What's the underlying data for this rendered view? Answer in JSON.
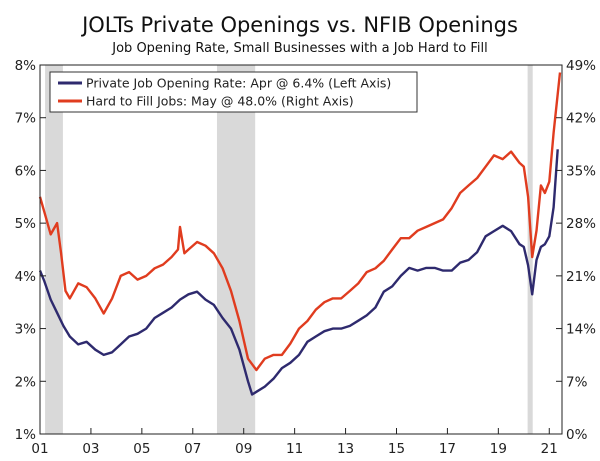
{
  "chart_data": {
    "type": "line",
    "title": "JOLTs Private Openings vs. NFIB Openings",
    "subtitle": "Job Opening Rate, Small Businesses with a Job Hard to Fill",
    "x_range": [
      2001,
      2021.5
    ],
    "x_tick_values": [
      2001,
      2003,
      2005,
      2007,
      2009,
      2011,
      2013,
      2015,
      2017,
      2019,
      2021
    ],
    "x_tick_labels": [
      "01",
      "03",
      "05",
      "07",
      "09",
      "11",
      "13",
      "15",
      "17",
      "19",
      "21"
    ],
    "left_axis": {
      "range": [
        1,
        8
      ],
      "ticks": [
        1,
        2,
        3,
        4,
        5,
        6,
        7,
        8
      ],
      "tick_labels": [
        "1%",
        "2%",
        "3%",
        "4%",
        "5%",
        "6%",
        "7%",
        "8%"
      ]
    },
    "right_axis": {
      "range": [
        0,
        49
      ],
      "ticks": [
        0,
        7,
        14,
        21,
        28,
        35,
        42,
        49
      ],
      "tick_labels": [
        "0%",
        "7%",
        "14%",
        "21%",
        "28%",
        "35%",
        "42%",
        "49%"
      ]
    },
    "recessions": [
      [
        2001.2,
        2001.9
      ],
      [
        2007.95,
        2009.45
      ],
      [
        2020.15,
        2020.35
      ]
    ],
    "legend": {
      "placement": "top-left",
      "entries": [
        "Private Job Opening Rate: Apr @ 6.4% (Left Axis)",
        "Hard to Fill Jobs: May @ 48.0% (Right Axis)"
      ]
    },
    "series": [
      {
        "name": "Private Job Opening Rate",
        "axis": "left",
        "color": "#2e2a6e",
        "points": [
          [
            2001.0,
            4.1
          ],
          [
            2001.17,
            3.9
          ],
          [
            2001.42,
            3.55
          ],
          [
            2001.67,
            3.3
          ],
          [
            2001.92,
            3.05
          ],
          [
            2002.17,
            2.85
          ],
          [
            2002.5,
            2.7
          ],
          [
            2002.83,
            2.75
          ],
          [
            2003.17,
            2.6
          ],
          [
            2003.5,
            2.5
          ],
          [
            2003.83,
            2.55
          ],
          [
            2004.17,
            2.7
          ],
          [
            2004.5,
            2.85
          ],
          [
            2004.83,
            2.9
          ],
          [
            2005.17,
            3.0
          ],
          [
            2005.5,
            3.2
          ],
          [
            2005.83,
            3.3
          ],
          [
            2006.17,
            3.4
          ],
          [
            2006.5,
            3.55
          ],
          [
            2006.83,
            3.65
          ],
          [
            2007.17,
            3.7
          ],
          [
            2007.5,
            3.55
          ],
          [
            2007.83,
            3.45
          ],
          [
            2008.17,
            3.2
          ],
          [
            2008.5,
            3.0
          ],
          [
            2008.83,
            2.6
          ],
          [
            2009.17,
            2.0
          ],
          [
            2009.33,
            1.75
          ],
          [
            2009.5,
            1.8
          ],
          [
            2009.83,
            1.9
          ],
          [
            2010.17,
            2.05
          ],
          [
            2010.5,
            2.25
          ],
          [
            2010.83,
            2.35
          ],
          [
            2011.17,
            2.5
          ],
          [
            2011.5,
            2.75
          ],
          [
            2011.83,
            2.85
          ],
          [
            2012.17,
            2.95
          ],
          [
            2012.5,
            3.0
          ],
          [
            2012.83,
            3.0
          ],
          [
            2013.17,
            3.05
          ],
          [
            2013.5,
            3.15
          ],
          [
            2013.83,
            3.25
          ],
          [
            2014.17,
            3.4
          ],
          [
            2014.5,
            3.7
          ],
          [
            2014.83,
            3.8
          ],
          [
            2015.17,
            4.0
          ],
          [
            2015.5,
            4.15
          ],
          [
            2015.83,
            4.1
          ],
          [
            2016.17,
            4.15
          ],
          [
            2016.5,
            4.15
          ],
          [
            2016.83,
            4.1
          ],
          [
            2017.17,
            4.1
          ],
          [
            2017.5,
            4.25
          ],
          [
            2017.83,
            4.3
          ],
          [
            2018.17,
            4.45
          ],
          [
            2018.5,
            4.75
          ],
          [
            2018.83,
            4.85
          ],
          [
            2019.17,
            4.95
          ],
          [
            2019.5,
            4.85
          ],
          [
            2019.83,
            4.6
          ],
          [
            2020.0,
            4.55
          ],
          [
            2020.17,
            4.2
          ],
          [
            2020.33,
            3.65
          ],
          [
            2020.5,
            4.3
          ],
          [
            2020.67,
            4.55
          ],
          [
            2020.83,
            4.6
          ],
          [
            2021.0,
            4.75
          ],
          [
            2021.17,
            5.3
          ],
          [
            2021.33,
            6.4
          ]
        ]
      },
      {
        "name": "Hard to Fill Jobs",
        "axis": "right",
        "color": "#e03c1f",
        "points": [
          [
            2001.0,
            31.5
          ],
          [
            2001.17,
            29.5
          ],
          [
            2001.42,
            26.5
          ],
          [
            2001.67,
            28.0
          ],
          [
            2001.83,
            24.0
          ],
          [
            2002.0,
            19.0
          ],
          [
            2002.17,
            18.0
          ],
          [
            2002.5,
            20.0
          ],
          [
            2002.83,
            19.5
          ],
          [
            2003.17,
            18.0
          ],
          [
            2003.5,
            16.0
          ],
          [
            2003.83,
            18.0
          ],
          [
            2004.17,
            21.0
          ],
          [
            2004.5,
            21.5
          ],
          [
            2004.83,
            20.5
          ],
          [
            2005.17,
            21.0
          ],
          [
            2005.5,
            22.0
          ],
          [
            2005.83,
            22.5
          ],
          [
            2006.17,
            23.5
          ],
          [
            2006.42,
            24.5
          ],
          [
            2006.5,
            27.5
          ],
          [
            2006.67,
            24.0
          ],
          [
            2006.83,
            24.5
          ],
          [
            2007.17,
            25.5
          ],
          [
            2007.5,
            25.0
          ],
          [
            2007.83,
            24.0
          ],
          [
            2008.17,
            22.0
          ],
          [
            2008.5,
            19.0
          ],
          [
            2008.83,
            15.0
          ],
          [
            2009.17,
            10.0
          ],
          [
            2009.5,
            8.5
          ],
          [
            2009.83,
            10.0
          ],
          [
            2010.17,
            10.5
          ],
          [
            2010.5,
            10.5
          ],
          [
            2010.83,
            12.0
          ],
          [
            2011.17,
            14.0
          ],
          [
            2011.5,
            15.0
          ],
          [
            2011.83,
            16.5
          ],
          [
            2012.17,
            17.5
          ],
          [
            2012.5,
            18.0
          ],
          [
            2012.83,
            18.0
          ],
          [
            2013.17,
            19.0
          ],
          [
            2013.5,
            20.0
          ],
          [
            2013.83,
            21.5
          ],
          [
            2014.17,
            22.0
          ],
          [
            2014.5,
            23.0
          ],
          [
            2014.83,
            24.5
          ],
          [
            2015.17,
            26.0
          ],
          [
            2015.5,
            26.0
          ],
          [
            2015.83,
            27.0
          ],
          [
            2016.17,
            27.5
          ],
          [
            2016.5,
            28.0
          ],
          [
            2016.83,
            28.5
          ],
          [
            2017.17,
            30.0
          ],
          [
            2017.5,
            32.0
          ],
          [
            2017.83,
            33.0
          ],
          [
            2018.17,
            34.0
          ],
          [
            2018.5,
            35.5
          ],
          [
            2018.83,
            37.0
          ],
          [
            2019.17,
            36.5
          ],
          [
            2019.5,
            37.5
          ],
          [
            2019.83,
            36.0
          ],
          [
            2020.0,
            35.5
          ],
          [
            2020.17,
            31.5
          ],
          [
            2020.33,
            23.5
          ],
          [
            2020.5,
            27.0
          ],
          [
            2020.67,
            33.0
          ],
          [
            2020.83,
            32.0
          ],
          [
            2021.0,
            33.5
          ],
          [
            2021.17,
            40.0
          ],
          [
            2021.42,
            48.0
          ]
        ]
      }
    ]
  }
}
